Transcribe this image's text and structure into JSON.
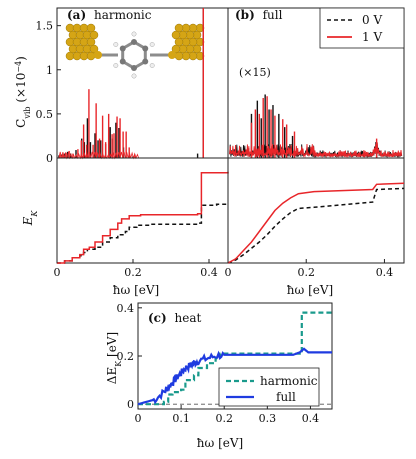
{
  "colors": {
    "zero_v": "#111111",
    "one_v": "#e8262a",
    "harmonic": "#1a9a8c",
    "full": "#1f3be0",
    "axis": "#222222",
    "inset_gold": "#d5a515",
    "inset_gray": "#8c8c8c"
  },
  "chart_data": [
    {
      "type": "line",
      "panel": "a",
      "title": "harmonic",
      "panel_letter": "(a)",
      "ylabel": "C_vib (×10⁻⁴)",
      "ylabel_text": "C",
      "ylabel_sub": "vib",
      "ylabel_rest": " (×10",
      "ylabel_exp": "−4",
      "ylabel_close": ")",
      "xlim": [
        0,
        0.45
      ],
      "ylim": [
        0,
        1.7
      ],
      "yticks": [
        "0",
        "0.5",
        "1",
        "1.5"
      ],
      "series": [
        {
          "name": "0 V",
          "style": "dashed",
          "peaks": [
            [
              0.005,
              0.03
            ],
            [
              0.012,
              0.04
            ],
            [
              0.02,
              0.05
            ],
            [
              0.028,
              0.07
            ],
            [
              0.036,
              0.05
            ],
            [
              0.05,
              0.09
            ],
            [
              0.065,
              0.22
            ],
            [
              0.072,
              0.18
            ],
            [
              0.08,
              0.45
            ],
            [
              0.088,
              0.18
            ],
            [
              0.1,
              0.28
            ],
            [
              0.108,
              0.2
            ],
            [
              0.115,
              0.2
            ],
            [
              0.128,
              0.16
            ],
            [
              0.14,
              0.35
            ],
            [
              0.145,
              0.22
            ],
            [
              0.155,
              0.4
            ],
            [
              0.163,
              0.34
            ],
            [
              0.175,
              0.12
            ],
            [
              0.19,
              0.05
            ],
            [
              0.2,
              0.02
            ],
            [
              0.37,
              0.05
            ],
            [
              0.385,
              1.7
            ]
          ]
        },
        {
          "name": "1 V",
          "style": "solid",
          "peaks": [
            [
              0.008,
              0.04
            ],
            [
              0.016,
              0.04
            ],
            [
              0.024,
              0.06
            ],
            [
              0.032,
              0.08
            ],
            [
              0.042,
              0.05
            ],
            [
              0.055,
              0.1
            ],
            [
              0.064,
              0.2
            ],
            [
              0.07,
              0.38
            ],
            [
              0.078,
              0.15
            ],
            [
              0.084,
              0.78
            ],
            [
              0.095,
              0.15
            ],
            [
              0.103,
              0.62
            ],
            [
              0.112,
              0.22
            ],
            [
              0.12,
              0.48
            ],
            [
              0.128,
              0.18
            ],
            [
              0.136,
              0.5
            ],
            [
              0.145,
              0.27
            ],
            [
              0.15,
              0.28
            ],
            [
              0.158,
              0.47
            ],
            [
              0.166,
              0.45
            ],
            [
              0.174,
              0.3
            ],
            [
              0.182,
              0.3
            ],
            [
              0.19,
              0.12
            ],
            [
              0.205,
              0.04
            ],
            [
              0.385,
              1.75
            ]
          ]
        }
      ]
    },
    {
      "type": "line",
      "panel": "b",
      "title": "full",
      "panel_letter": "(b)",
      "annotation": "(×15)",
      "xlim": [
        0,
        0.45
      ],
      "ylim": [
        0,
        1.7
      ],
      "legend": {
        "entries": [
          "0 V",
          "1 V"
        ],
        "position": "top-right"
      },
      "series": [
        {
          "name": "0 V",
          "style": "dashed",
          "peaks": [
            [
              0.06,
              0.5
            ],
            [
              0.075,
              0.65
            ],
            [
              0.085,
              0.45
            ],
            [
              0.095,
              0.72
            ],
            [
              0.105,
              0.55
            ],
            [
              0.115,
              0.6
            ],
            [
              0.13,
              0.5
            ],
            [
              0.145,
              0.35
            ],
            [
              0.165,
              0.25
            ],
            [
              0.38,
              0.15
            ]
          ]
        },
        {
          "name": "1 V",
          "style": "solid",
          "peaks": [
            [
              0.06,
              0.4
            ],
            [
              0.07,
              0.55
            ],
            [
              0.08,
              0.5
            ],
            [
              0.09,
              0.68
            ],
            [
              0.1,
              0.7
            ],
            [
              0.11,
              0.55
            ],
            [
              0.12,
              0.48
            ],
            [
              0.14,
              0.44
            ],
            [
              0.15,
              0.38
            ],
            [
              0.17,
              0.3
            ],
            [
              0.38,
              0.22
            ]
          ]
        }
      ]
    },
    {
      "type": "line",
      "panel": "a-lower",
      "ylabel": "E_K",
      "ylabel_text": "E",
      "ylabel_sub": "K",
      "xlabel": "ħω [eV]",
      "xlabel_text": "ħω [eV]",
      "xlim": [
        0,
        0.45
      ],
      "xticks": [
        "0",
        "0.2",
        "0.4"
      ],
      "series": [
        {
          "name": "0 V",
          "style": "dashed",
          "points": [
            [
              0,
              0
            ],
            [
              0.02,
              0.02
            ],
            [
              0.04,
              0.05
            ],
            [
              0.06,
              0.07
            ],
            [
              0.07,
              0.1
            ],
            [
              0.08,
              0.13
            ],
            [
              0.1,
              0.15
            ],
            [
              0.12,
              0.2
            ],
            [
              0.14,
              0.24
            ],
            [
              0.16,
              0.27
            ],
            [
              0.18,
              0.3
            ],
            [
              0.19,
              0.34
            ],
            [
              0.21,
              0.36
            ],
            [
              0.25,
              0.37
            ],
            [
              0.37,
              0.38
            ],
            [
              0.38,
              0.55
            ],
            [
              0.42,
              0.56
            ],
            [
              0.45,
              0.56
            ]
          ]
        },
        {
          "name": "1 V",
          "style": "solid",
          "points": [
            [
              0,
              0
            ],
            [
              0.02,
              0.02
            ],
            [
              0.04,
              0.05
            ],
            [
              0.06,
              0.08
            ],
            [
              0.07,
              0.13
            ],
            [
              0.085,
              0.15
            ],
            [
              0.1,
              0.2
            ],
            [
              0.12,
              0.26
            ],
            [
              0.14,
              0.32
            ],
            [
              0.16,
              0.38
            ],
            [
              0.17,
              0.42
            ],
            [
              0.19,
              0.45
            ],
            [
              0.22,
              0.46
            ],
            [
              0.37,
              0.47
            ],
            [
              0.38,
              0.86
            ],
            [
              0.45,
              0.87
            ]
          ]
        }
      ]
    },
    {
      "type": "line",
      "panel": "b-lower",
      "xlabel": "ħω [eV]",
      "xlabel_text": "ħω [eV]",
      "xlim": [
        0,
        0.45
      ],
      "xticks": [
        "0",
        "0.2",
        "0.4"
      ],
      "series": [
        {
          "name": "0 V",
          "style": "dashed",
          "points": [
            [
              0,
              0
            ],
            [
              0.02,
              0.03
            ],
            [
              0.04,
              0.08
            ],
            [
              0.06,
              0.14
            ],
            [
              0.08,
              0.2
            ],
            [
              0.1,
              0.27
            ],
            [
              0.12,
              0.35
            ],
            [
              0.14,
              0.42
            ],
            [
              0.16,
              0.48
            ],
            [
              0.18,
              0.52
            ],
            [
              0.22,
              0.53
            ],
            [
              0.37,
              0.58
            ],
            [
              0.38,
              0.7
            ],
            [
              0.45,
              0.71
            ]
          ]
        },
        {
          "name": "1 V",
          "style": "solid",
          "points": [
            [
              0,
              0
            ],
            [
              0.02,
              0.04
            ],
            [
              0.04,
              0.12
            ],
            [
              0.06,
              0.2
            ],
            [
              0.08,
              0.3
            ],
            [
              0.1,
              0.4
            ],
            [
              0.12,
              0.5
            ],
            [
              0.14,
              0.57
            ],
            [
              0.16,
              0.62
            ],
            [
              0.18,
              0.66
            ],
            [
              0.22,
              0.68
            ],
            [
              0.37,
              0.7
            ],
            [
              0.38,
              0.75
            ],
            [
              0.45,
              0.76
            ]
          ]
        }
      ]
    },
    {
      "type": "line",
      "panel": "c",
      "title": "heat",
      "panel_letter": "(c)",
      "ylabel": "ΔE_K [eV]",
      "ylabel_text": "ΔE",
      "ylabel_sub": "K",
      "ylabel_rest": " [eV]",
      "xlabel": "ħω [eV]",
      "xlabel_text": "ħω [eV]",
      "xlim": [
        0,
        0.45
      ],
      "ylim": [
        -0.02,
        0.42
      ],
      "xticks": [
        "0",
        "0.1",
        "0.2",
        "0.3",
        "0.4"
      ],
      "yticks": [
        "0",
        "0.2",
        "0.4"
      ],
      "legend": {
        "entries": [
          "harmonic",
          "full"
        ],
        "position": "bottom-right"
      },
      "series": [
        {
          "name": "harmonic",
          "style": "dashed",
          "points": [
            [
              0,
              0
            ],
            [
              0.06,
              0.01
            ],
            [
              0.07,
              0.04
            ],
            [
              0.08,
              0.05
            ],
            [
              0.1,
              0.06
            ],
            [
              0.11,
              0.1
            ],
            [
              0.13,
              0.12
            ],
            [
              0.14,
              0.15
            ],
            [
              0.16,
              0.17
            ],
            [
              0.18,
              0.19
            ],
            [
              0.19,
              0.21
            ],
            [
              0.36,
              0.21
            ],
            [
              0.375,
              0.22
            ],
            [
              0.38,
              0.38
            ],
            [
              0.45,
              0.38
            ]
          ]
        },
        {
          "name": "full",
          "style": "solid",
          "points": [
            [
              0,
              0
            ],
            [
              0.02,
              0.01
            ],
            [
              0.04,
              0.02
            ],
            [
              0.06,
              0.05
            ],
            [
              0.07,
              0.07
            ],
            [
              0.08,
              0.09
            ],
            [
              0.09,
              0.11
            ],
            [
              0.1,
              0.13
            ],
            [
              0.11,
              0.15
            ],
            [
              0.12,
              0.16
            ],
            [
              0.13,
              0.17
            ],
            [
              0.14,
              0.18
            ],
            [
              0.16,
              0.19
            ],
            [
              0.18,
              0.2
            ],
            [
              0.2,
              0.205
            ],
            [
              0.25,
              0.205
            ],
            [
              0.3,
              0.205
            ],
            [
              0.36,
              0.205
            ],
            [
              0.375,
              0.215
            ],
            [
              0.385,
              0.23
            ],
            [
              0.395,
              0.215
            ],
            [
              0.45,
              0.215
            ]
          ]
        }
      ]
    }
  ]
}
